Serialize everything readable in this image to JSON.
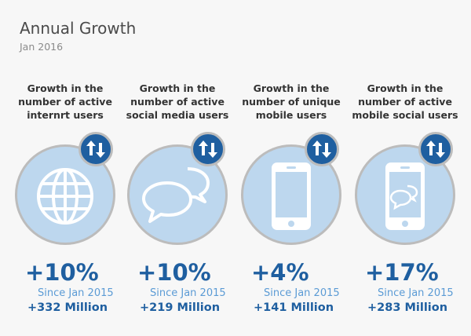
{
  "title": "Annual Growth",
  "subtitle": "Jan 2016",
  "colors": {
    "accent": "#1f5fa0",
    "circle": "#bdd7ee",
    "since": "#5b9bd5"
  },
  "cards": [
    {
      "heading": [
        "Growth in the",
        "number of active",
        "internrt users"
      ],
      "icon": "globe-icon",
      "percent": "+10%",
      "since": "Since Jan 2015",
      "absolute": "+332 Million"
    },
    {
      "heading": [
        "Growth in the",
        "number of active",
        "social media users"
      ],
      "icon": "chat-bubbles-icon",
      "percent": "+10%",
      "since": "Since Jan 2015",
      "absolute": "+219 Million"
    },
    {
      "heading": [
        "Growth in the",
        "number of unique",
        "mobile users"
      ],
      "icon": "smartphone-icon",
      "percent": "+4%",
      "since": "Since Jan 2015",
      "absolute": "+141 Million"
    },
    {
      "heading": [
        "Growth in the",
        "number of active",
        "mobile social users"
      ],
      "icon": "smartphone-chat-icon",
      "percent": "+17%",
      "since": "Since Jan 2015",
      "absolute": "+283 Million"
    }
  ]
}
